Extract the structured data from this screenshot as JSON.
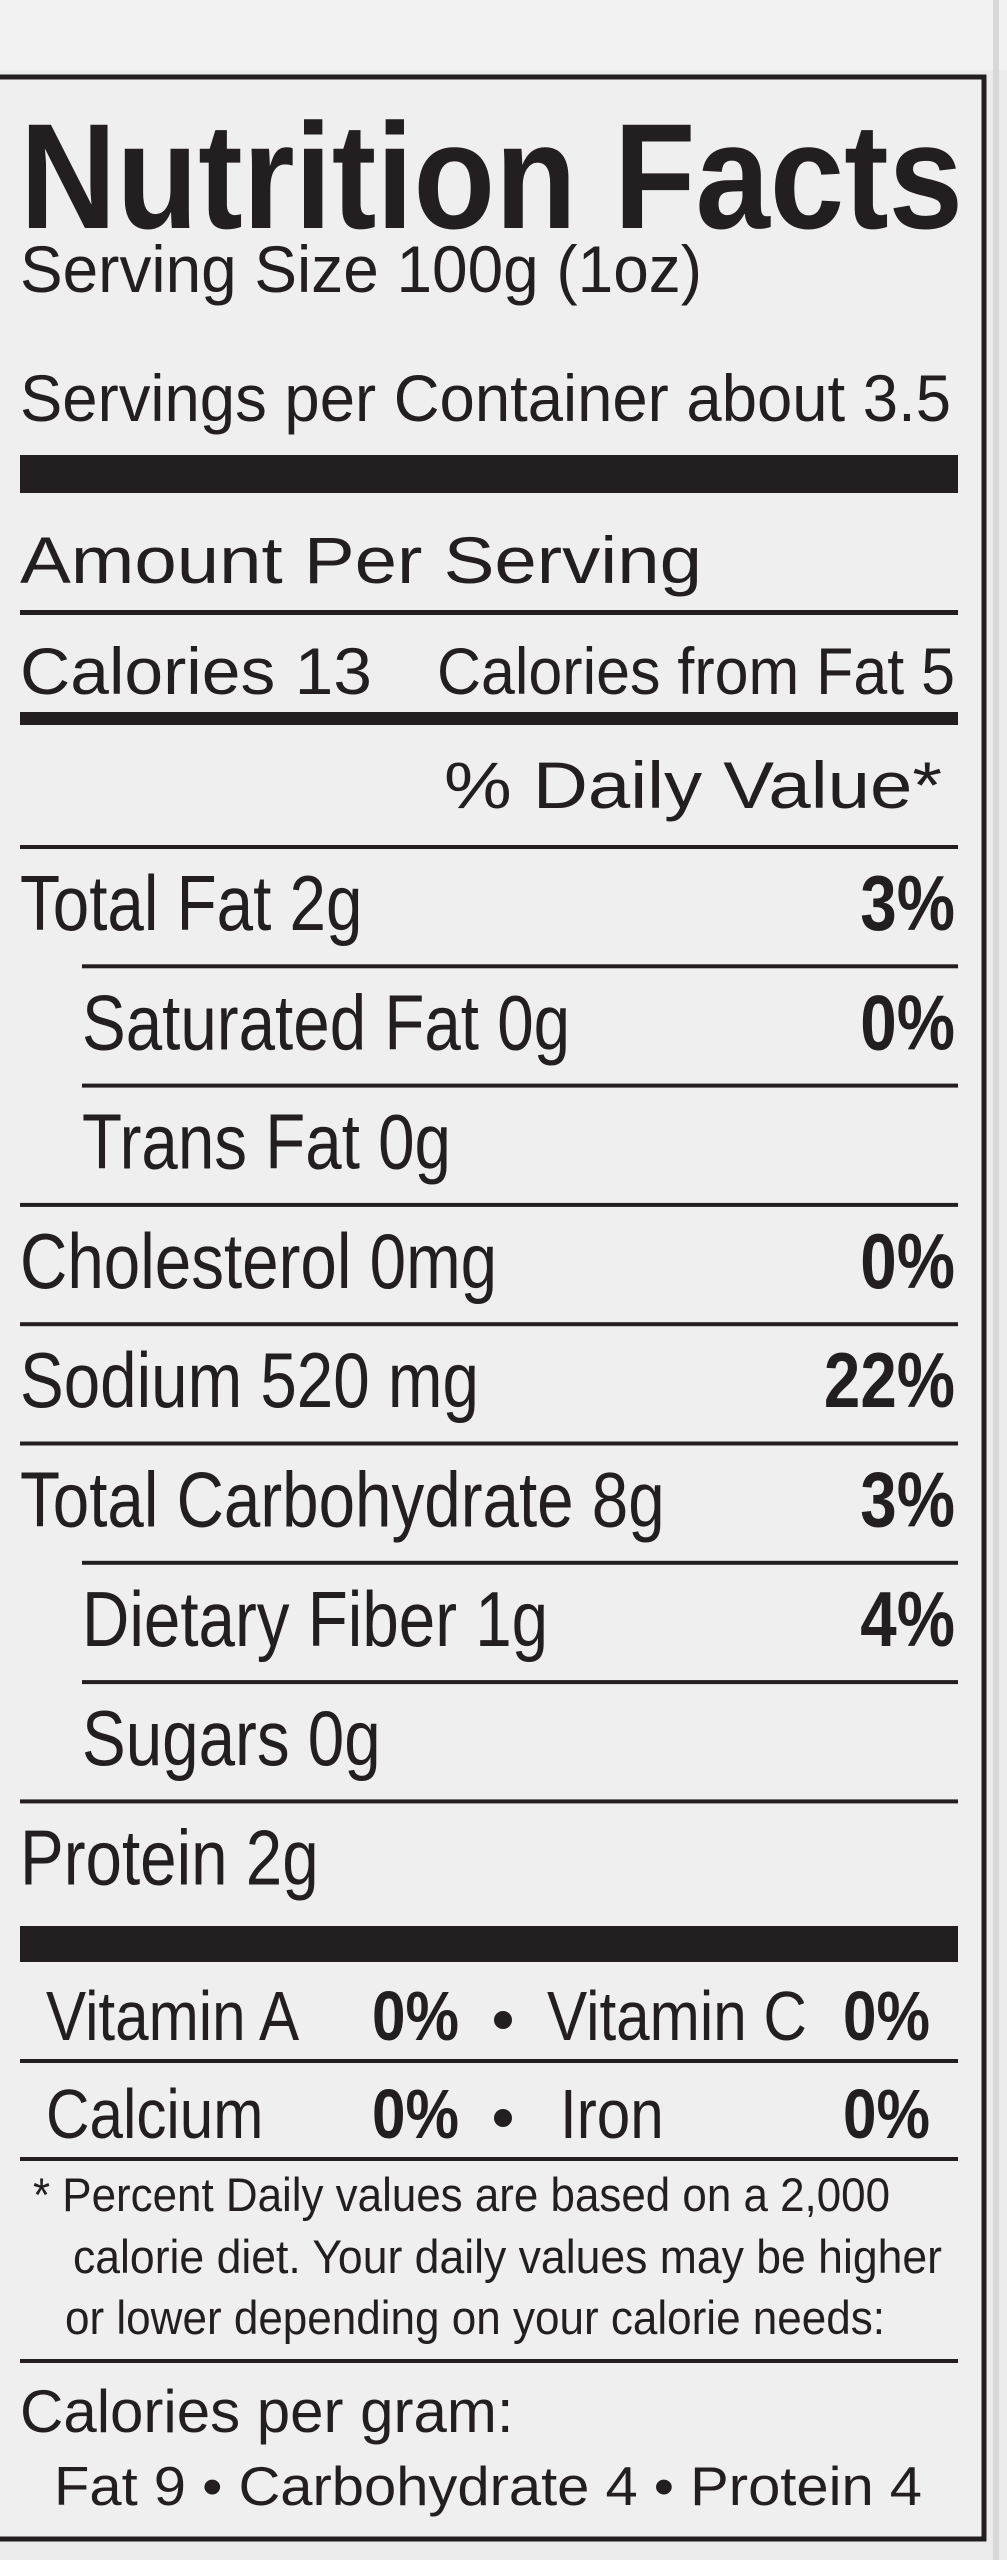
{
  "title": "Nutrition Facts",
  "serving_size": "Serving Size 100g (1oz)",
  "servings_per_container": "Servings per Container about 3.5",
  "amount_per_serving": "Amount Per Serving",
  "calories": "Calories 13",
  "calories_from_fat": "Calories from Fat 5",
  "daily_value_header": "% Daily Value*",
  "nutrients": {
    "rows": [
      {
        "label": "Total Fat 2g",
        "dv": "3%",
        "indent": false
      },
      {
        "label": "Saturated Fat  0g",
        "dv": "0%",
        "indent": true
      },
      {
        "label": "Trans Fat  0g",
        "indent": true
      },
      {
        "label": "Cholesterol  0mg",
        "dv": "0%",
        "indent": false
      },
      {
        "label": "Sodium  520 mg",
        "dv": "22%",
        "indent": false
      },
      {
        "label": "Total Carbohydrate 8g",
        "dv": "3%",
        "indent": false
      },
      {
        "label": "Dietary Fiber  1g",
        "dv": "4%",
        "indent": true
      },
      {
        "label": "Sugars  0g",
        "indent": true
      },
      {
        "label": "Protein  2g",
        "indent": false
      }
    ]
  },
  "vitamins": {
    "rows": [
      [
        {
          "label": "Vitamin A",
          "dv": "0%"
        },
        {
          "label": "Vitamin C",
          "dv": "0%"
        }
      ],
      [
        {
          "label": "Calcium",
          "dv": "0%"
        },
        {
          "label": "Iron",
          "dv": "0%"
        }
      ]
    ]
  },
  "footnote": {
    "lines": [
      "* Percent Daily values are based on a 2,000",
      "calorie diet.  Your daily values may be higher",
      "or lower depending on your calorie needs:"
    ]
  },
  "calories_per_gram": "Calories per gram:",
  "calorie_breakdown": "Fat 9 • Carbohydrate 4 • Protein 4"
}
